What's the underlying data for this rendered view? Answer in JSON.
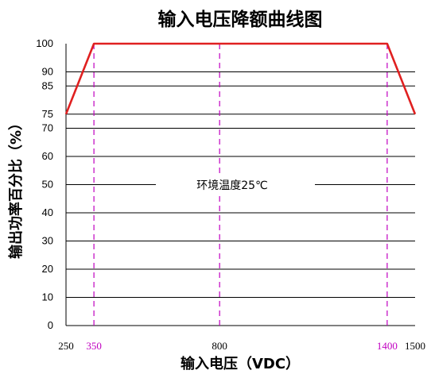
{
  "chart_data": {
    "type": "line",
    "title": "输入电压降额曲线图",
    "xlabel": "输入电压（VDC）",
    "ylabel": "输出功率百分比（%）",
    "annotation": "环境温度25℃",
    "x_ticks": [
      {
        "value": 250,
        "label": "250",
        "color": "#000000"
      },
      {
        "value": 350,
        "label": "350",
        "color": "#c000c0"
      },
      {
        "value": 800,
        "label": "800",
        "color": "#000000"
      },
      {
        "value": 1400,
        "label": "1400",
        "color": "#c000c0"
      },
      {
        "value": 1500,
        "label": "1500",
        "color": "#000000"
      }
    ],
    "y_ticks": [
      0,
      10,
      20,
      30,
      40,
      50,
      60,
      70,
      75,
      85,
      90,
      100
    ],
    "vertical_guides": [
      350,
      800,
      1400
    ],
    "series": [
      {
        "x": [
          250,
          350,
          1400,
          1500
        ],
        "y": [
          75,
          100,
          100,
          75
        ],
        "color": "#e02020"
      }
    ],
    "grid": true,
    "guide_color": "#c000c0",
    "axis_color": "#000000"
  }
}
